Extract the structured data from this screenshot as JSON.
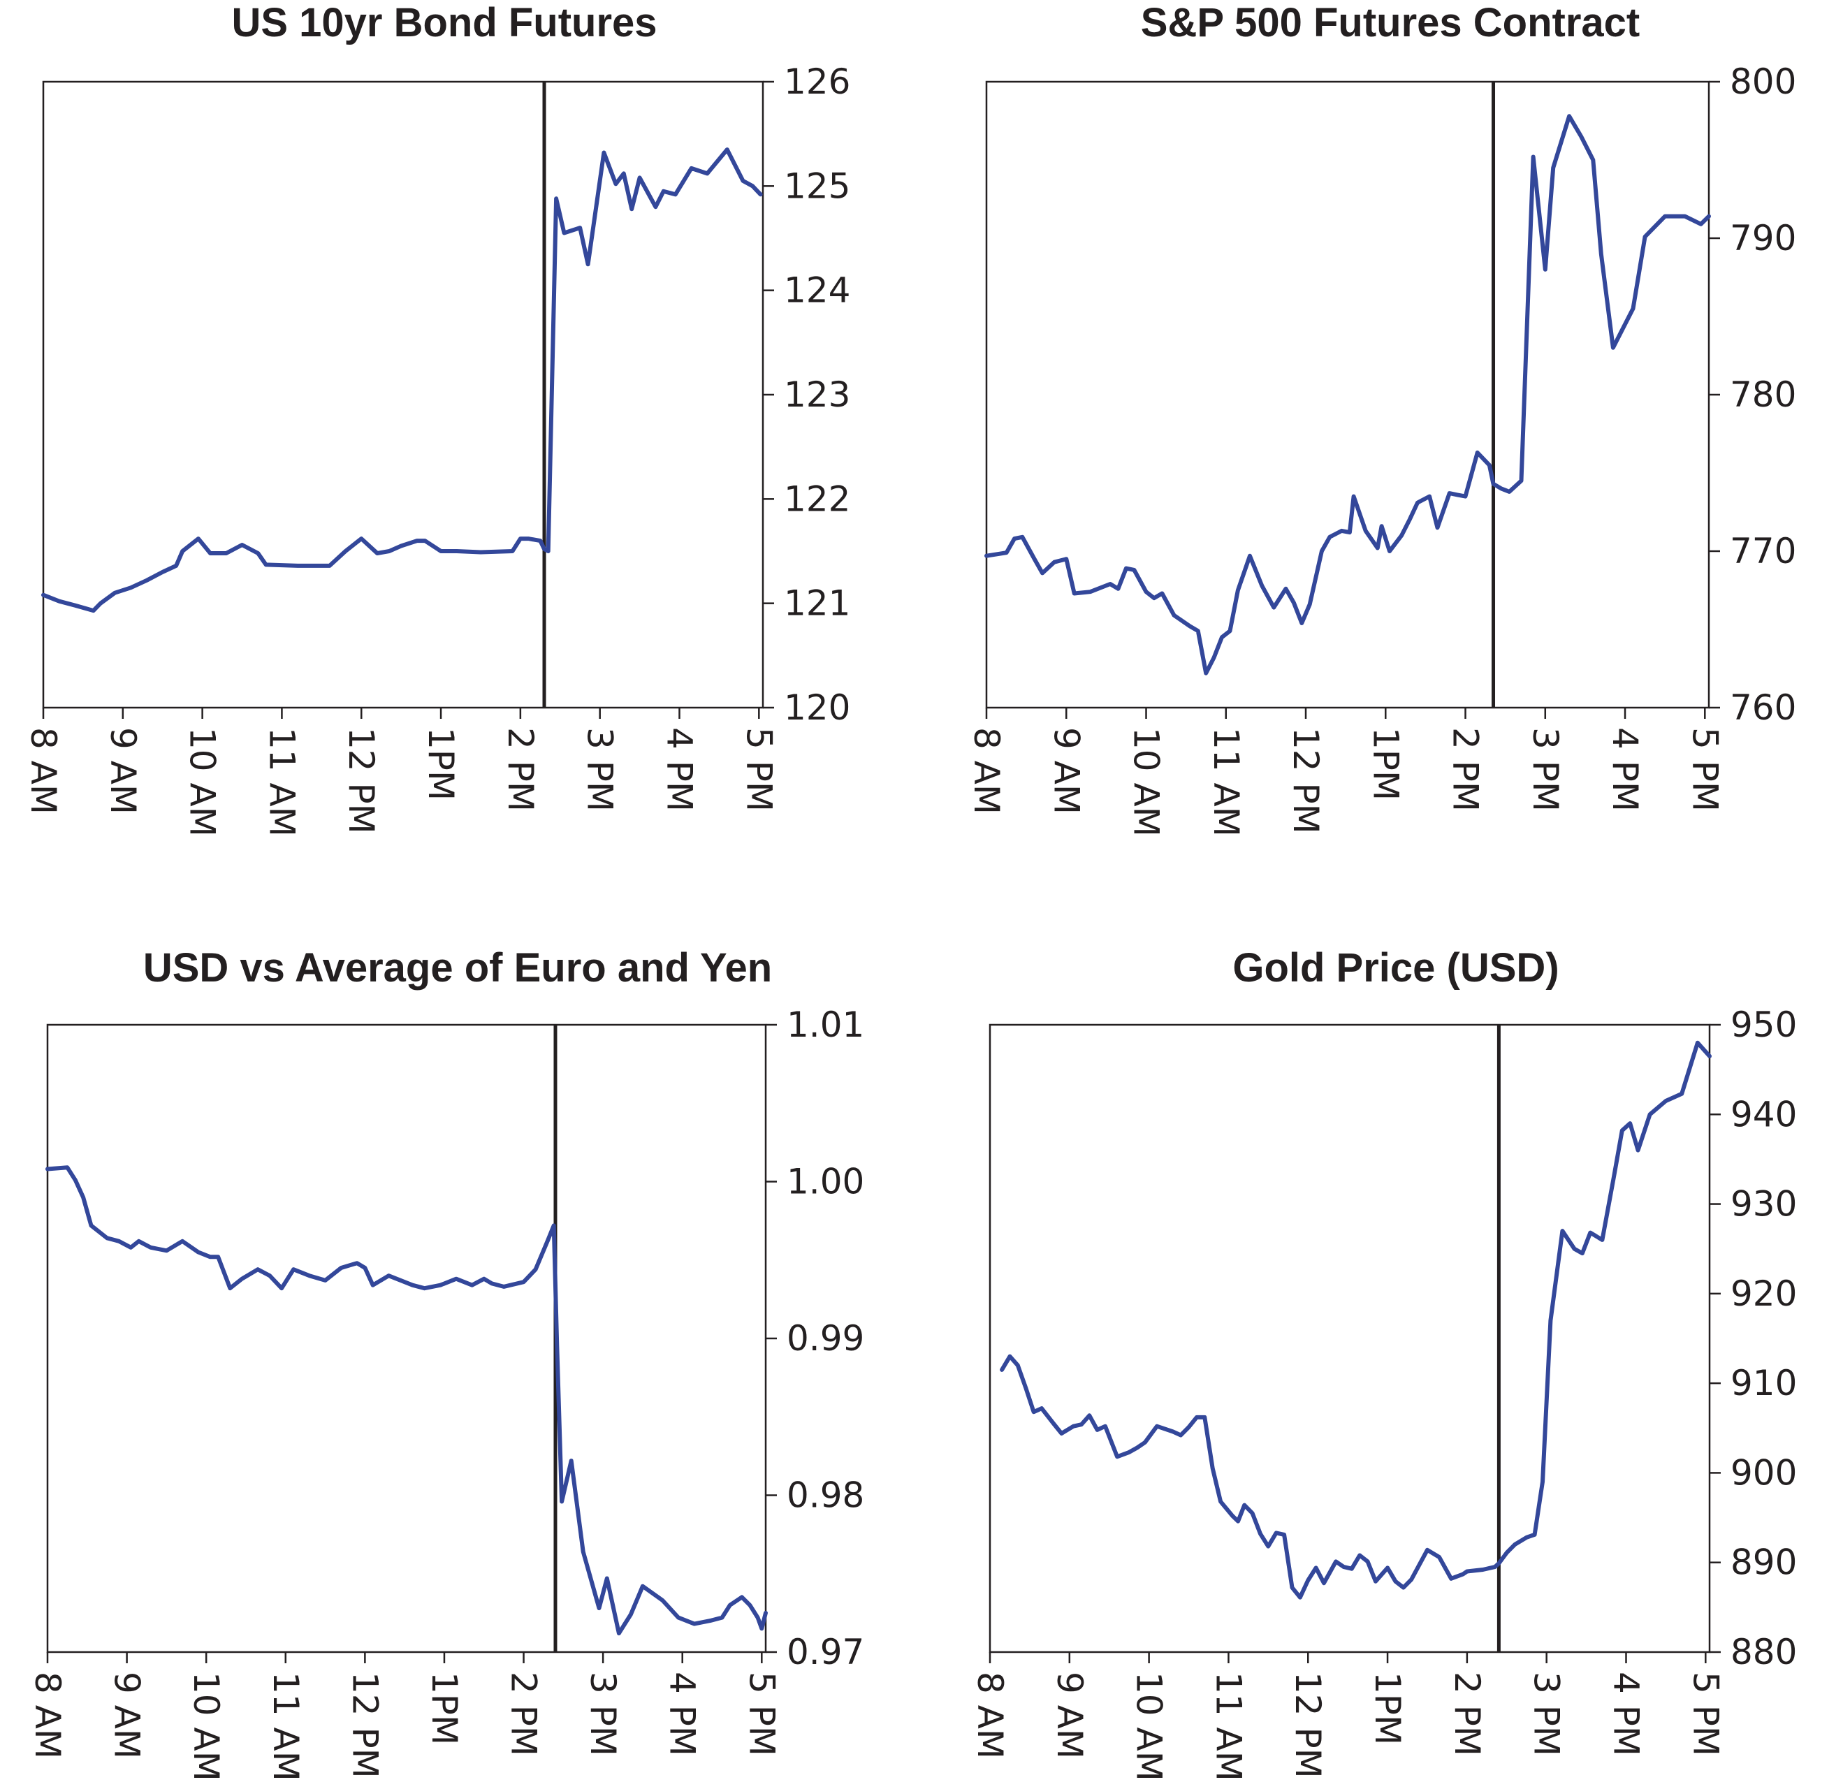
{
  "colors": {
    "series": "#33479a",
    "axis": "#231f20",
    "background": "#ffffff"
  },
  "chart_data": [
    {
      "type": "line",
      "title": "US 10yr Bond Futures",
      "xlabel": "",
      "ylabel": "",
      "x_unit": "hours since 8 AM",
      "xlim": [
        0,
        9.05
      ],
      "ylim": [
        120,
        126
      ],
      "y_ticks": [
        120,
        121,
        122,
        123,
        124,
        125,
        126
      ],
      "y_tick_labels": [
        "120",
        "121",
        "122",
        "123",
        "124",
        "125",
        "126"
      ],
      "x_ticks": [
        0,
        1,
        2,
        3,
        4,
        5,
        6,
        7,
        8,
        9
      ],
      "x_tick_labels": [
        "8 AM",
        "9 AM",
        "10 AM",
        "11 AM",
        "12 PM",
        "1PM",
        "2 PM",
        "3 PM",
        "4 PM",
        "5 PM"
      ],
      "event_x": 6.3,
      "series": [
        {
          "name": "US 10yr Bond Futures",
          "x": [
            0,
            0.2,
            0.4,
            0.63,
            0.72,
            0.9,
            1.1,
            1.3,
            1.5,
            1.67,
            1.75,
            1.95,
            2.1,
            2.3,
            2.5,
            2.7,
            2.8,
            3.2,
            3.4,
            3.6,
            3.8,
            4.0,
            4.2,
            4.35,
            4.5,
            4.7,
            4.8,
            5.0,
            5.2,
            5.5,
            5.9,
            6.0,
            6.1,
            6.25,
            6.3,
            6.35,
            6.45,
            6.55,
            6.75,
            6.85,
            7.05,
            7.2,
            7.3,
            7.4,
            7.5,
            7.7,
            7.8,
            7.95,
            8.15,
            8.35,
            8.6,
            8.8,
            8.92,
            9.02
          ],
          "values": [
            121.08,
            121.02,
            120.98,
            120.93,
            121.0,
            121.1,
            121.15,
            121.22,
            121.3,
            121.36,
            121.5,
            121.62,
            121.48,
            121.48,
            121.56,
            121.48,
            121.37,
            121.36,
            121.36,
            121.36,
            121.5,
            121.62,
            121.48,
            121.5,
            121.55,
            121.6,
            121.6,
            121.5,
            121.5,
            121.49,
            121.5,
            121.62,
            121.62,
            121.6,
            121.52,
            121.5,
            124.88,
            124.55,
            124.6,
            124.25,
            125.32,
            125.02,
            125.12,
            124.78,
            125.08,
            124.8,
            124.95,
            124.92,
            125.17,
            125.12,
            125.35,
            125.05,
            125.0,
            124.92
          ]
        }
      ]
    },
    {
      "type": "line",
      "title": "S&P 500 Futures Contract",
      "xlabel": "",
      "ylabel": "",
      "x_unit": "hours since 8 AM",
      "xlim": [
        0,
        9.05
      ],
      "ylim": [
        760,
        800
      ],
      "y_ticks": [
        760,
        770,
        780,
        790,
        800
      ],
      "y_tick_labels": [
        "760",
        "770",
        "780",
        "790",
        "800"
      ],
      "x_ticks": [
        0,
        1,
        2,
        3,
        4,
        5,
        6,
        7,
        8,
        9
      ],
      "x_tick_labels": [
        "8 AM",
        "9 AM",
        "10 AM",
        "11 AM",
        "12 PM",
        "1PM",
        "2 PM",
        "3 PM",
        "4 PM",
        "5 PM"
      ],
      "event_x": 6.35,
      "series": [
        {
          "name": "S&P 500 Futures Contract",
          "x": [
            0,
            0.25,
            0.35,
            0.45,
            0.6,
            0.7,
            0.85,
            1.0,
            1.1,
            1.3,
            1.55,
            1.65,
            1.75,
            1.85,
            2.0,
            2.1,
            2.2,
            2.35,
            2.55,
            2.65,
            2.75,
            2.85,
            2.95,
            3.05,
            3.15,
            3.3,
            3.45,
            3.6,
            3.75,
            3.85,
            3.95,
            4.05,
            4.2,
            4.3,
            4.45,
            4.55,
            4.6,
            4.75,
            4.9,
            4.95,
            5.05,
            5.2,
            5.3,
            5.4,
            5.55,
            5.65,
            5.8,
            5.9,
            6.0,
            6.15,
            6.3,
            6.35,
            6.45,
            6.55,
            6.7,
            6.85,
            7.0,
            7.1,
            7.3,
            7.45,
            7.6,
            7.7,
            7.85,
            7.95,
            8.1,
            8.25,
            8.5,
            8.75,
            8.95,
            9.05
          ],
          "values": [
            769.7,
            769.9,
            770.8,
            770.9,
            769.5,
            768.6,
            769.3,
            769.5,
            767.3,
            767.4,
            767.9,
            767.6,
            768.9,
            768.8,
            767.4,
            767.0,
            767.3,
            765.9,
            765.2,
            764.9,
            762.2,
            763.2,
            764.5,
            764.9,
            767.5,
            769.7,
            767.8,
            766.4,
            767.6,
            766.7,
            765.4,
            766.6,
            770.0,
            770.9,
            771.3,
            771.2,
            773.5,
            771.3,
            770.2,
            771.6,
            770.0,
            771.0,
            772.0,
            773.1,
            773.5,
            771.5,
            773.7,
            773.6,
            773.5,
            776.3,
            775.5,
            774.3,
            774.0,
            773.8,
            774.5,
            795.2,
            788.0,
            794.5,
            797.8,
            796.5,
            795.0,
            789.0,
            783.0,
            784.0,
            785.5,
            790.1,
            791.4,
            791.4,
            790.9,
            791.4
          ]
        }
      ]
    },
    {
      "type": "line",
      "title": "USD vs Average of Euro and Yen",
      "xlabel": "",
      "ylabel": "",
      "x_unit": "hours since 8 AM",
      "xlim": [
        0,
        9.05
      ],
      "ylim": [
        0.97,
        1.01
      ],
      "y_ticks": [
        0.97,
        0.98,
        0.99,
        1.0,
        1.01
      ],
      "y_tick_labels": [
        "0.97",
        "0.98",
        "0.99",
        "1.00",
        "1.01"
      ],
      "x_ticks": [
        0,
        1,
        2,
        3,
        4,
        5,
        6,
        7,
        8,
        9
      ],
      "x_tick_labels": [
        "8 AM",
        "9 AM",
        "10 AM",
        "11 AM",
        "12 PM",
        "1PM",
        "2 PM",
        "3 PM",
        "4 PM",
        "5 PM"
      ],
      "event_x": 6.4,
      "series": [
        {
          "name": "USD vs Average of Euro and Yen",
          "x": [
            0,
            0.25,
            0.35,
            0.45,
            0.55,
            0.75,
            0.9,
            1.05,
            1.15,
            1.3,
            1.5,
            1.7,
            1.9,
            2.05,
            2.15,
            2.3,
            2.45,
            2.65,
            2.8,
            2.95,
            3.1,
            3.3,
            3.5,
            3.7,
            3.9,
            4.0,
            4.1,
            4.3,
            4.45,
            4.6,
            4.75,
            4.95,
            5.15,
            5.35,
            5.5,
            5.6,
            5.75,
            6.0,
            6.15,
            6.3,
            6.38,
            6.42,
            6.48,
            6.6,
            6.75,
            6.85,
            6.95,
            7.05,
            7.2,
            7.35,
            7.5,
            7.75,
            7.95,
            8.15,
            8.35,
            8.5,
            8.6,
            8.75,
            8.85,
            8.95,
            9.0,
            9.05
          ],
          "values": [
            1.0008,
            1.0009,
            1.0001,
            0.999,
            0.9972,
            0.9964,
            0.9962,
            0.9958,
            0.9962,
            0.9958,
            0.9956,
            0.9962,
            0.9955,
            0.9952,
            0.9952,
            0.9932,
            0.9938,
            0.9944,
            0.994,
            0.9932,
            0.9944,
            0.994,
            0.9937,
            0.9945,
            0.9948,
            0.9945,
            0.9934,
            0.994,
            0.9937,
            0.9934,
            0.9932,
            0.9934,
            0.9938,
            0.9934,
            0.9938,
            0.9935,
            0.9933,
            0.9936,
            0.9944,
            0.9962,
            0.9972,
            0.9895,
            0.9796,
            0.9822,
            0.9764,
            0.9746,
            0.9728,
            0.9747,
            0.9712,
            0.9724,
            0.9742,
            0.9733,
            0.9722,
            0.9718,
            0.972,
            0.9722,
            0.973,
            0.9735,
            0.973,
            0.9722,
            0.9715,
            0.9725
          ]
        }
      ]
    },
    {
      "type": "line",
      "title": "Gold Price (USD)",
      "xlabel": "",
      "ylabel": "",
      "x_unit": "hours since 8 AM",
      "xlim": [
        0,
        9.05
      ],
      "ylim": [
        880,
        950
      ],
      "y_ticks": [
        880,
        890,
        900,
        910,
        920,
        930,
        940,
        950
      ],
      "y_tick_labels": [
        "880",
        "890",
        "900",
        "910",
        "920",
        "930",
        "940",
        "950"
      ],
      "x_ticks": [
        0,
        1,
        2,
        3,
        4,
        5,
        6,
        7,
        8,
        9
      ],
      "x_tick_labels": [
        "8 AM",
        "9 AM",
        "10 AM",
        "11 AM",
        "12 PM",
        "1PM",
        "2 PM",
        "3 PM",
        "4 PM",
        "5 PM"
      ],
      "event_x": 6.4,
      "series": [
        {
          "name": "Gold Price (USD)",
          "x": [
            0.15,
            0.25,
            0.35,
            0.45,
            0.55,
            0.65,
            0.8,
            0.9,
            1.05,
            1.15,
            1.25,
            1.35,
            1.45,
            1.6,
            1.75,
            1.85,
            1.95,
            2.1,
            2.3,
            2.4,
            2.5,
            2.6,
            2.7,
            2.8,
            2.9,
            3.05,
            3.12,
            3.2,
            3.3,
            3.4,
            3.5,
            3.6,
            3.7,
            3.8,
            3.9,
            4.0,
            4.1,
            4.2,
            4.35,
            4.45,
            4.55,
            4.65,
            4.75,
            4.85,
            5.0,
            5.1,
            5.2,
            5.3,
            5.5,
            5.65,
            5.8,
            5.95,
            6.0,
            6.2,
            6.35,
            6.4,
            6.5,
            6.6,
            6.75,
            6.85,
            6.95,
            7.05,
            7.2,
            7.35,
            7.45,
            7.55,
            7.7,
            7.85,
            7.95,
            8.05,
            8.15,
            8.3,
            8.5,
            8.7,
            8.9,
            9.05
          ],
          "values": [
            911.5,
            913.0,
            912.0,
            909.5,
            906.8,
            907.2,
            905.5,
            904.4,
            905.2,
            905.4,
            906.4,
            904.8,
            905.2,
            901.8,
            902.3,
            902.8,
            903.4,
            905.2,
            904.6,
            904.2,
            905.1,
            906.2,
            906.2,
            900.5,
            896.8,
            895.2,
            894.6,
            896.4,
            895.5,
            893.2,
            891.8,
            893.3,
            893.1,
            887.2,
            886.1,
            888.0,
            889.4,
            887.7,
            890.1,
            889.5,
            889.3,
            890.8,
            890.1,
            887.9,
            889.4,
            887.9,
            887.2,
            888.1,
            891.4,
            890.6,
            888.2,
            888.7,
            889.0,
            889.2,
            889.5,
            889.9,
            891.1,
            892.0,
            892.8,
            893.1,
            899.0,
            917.0,
            927.0,
            925.0,
            924.5,
            926.8,
            926.0,
            933.2,
            938.2,
            939.0,
            936.0,
            940.0,
            941.5,
            942.3,
            948.0,
            946.5
          ]
        }
      ]
    }
  ]
}
